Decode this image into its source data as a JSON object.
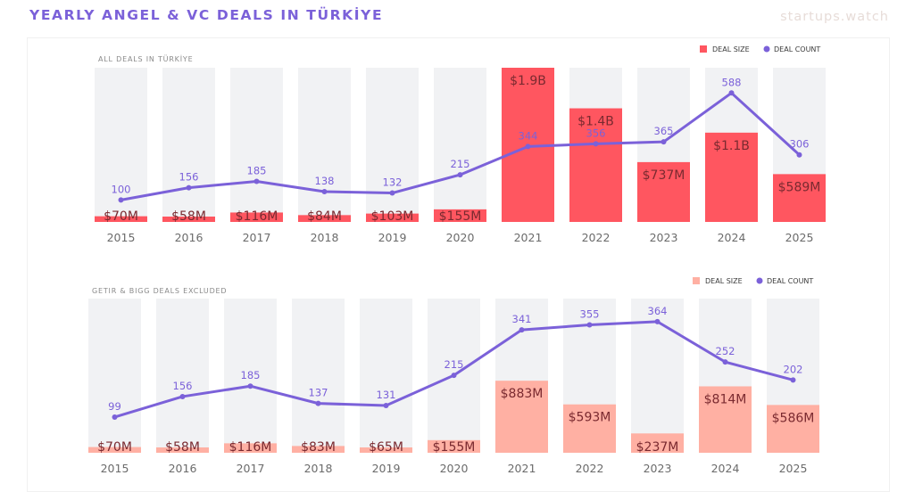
{
  "header": {
    "title": "YEARLY ANGEL & VC DEALS IN TÜRKİYE",
    "brand": "startups.watch"
  },
  "colors": {
    "title": "#7b61d9",
    "line": "#7b61d9",
    "bar_all": "#ff5660",
    "bar_excluded": "#ffb0a3",
    "bar_background": "#f1f2f4",
    "value_label": "#7a2a30"
  },
  "chart_data": [
    {
      "type": "bar",
      "title": "ALL DEALS IN TÜRKİYE",
      "legend": {
        "placement": "top-right",
        "entries": [
          "DEAL SIZE",
          "DEAL COUNT"
        ]
      },
      "categories": [
        "2015",
        "2016",
        "2017",
        "2018",
        "2019",
        "2020",
        "2021",
        "2022",
        "2023",
        "2024",
        "2025"
      ],
      "series": [
        {
          "name": "DEAL SIZE",
          "type": "bar",
          "unit": "USD millions",
          "values": [
            70,
            58,
            116,
            84,
            103,
            155,
            1900,
            1400,
            737,
            1100,
            589
          ],
          "labels": [
            "$70M",
            "$58M",
            "$116M",
            "$84M",
            "$103M",
            "$155M",
            "$1.9B",
            "$1.4B",
            "$737M",
            "$1.1B",
            "$589M"
          ]
        },
        {
          "name": "DEAL COUNT",
          "type": "line",
          "values": [
            100,
            156,
            185,
            138,
            132,
            215,
            344,
            356,
            365,
            588,
            306
          ]
        }
      ],
      "bar_ylim": [
        0,
        1900
      ],
      "line_ylim": [
        0,
        703
      ],
      "grid": false
    },
    {
      "type": "bar",
      "title": "GETIR & BIGG DEALS EXCLUDED",
      "legend": {
        "placement": "top-right",
        "entries": [
          "DEAL SIZE",
          "DEAL COUNT"
        ]
      },
      "categories": [
        "2015",
        "2016",
        "2017",
        "2018",
        "2019",
        "2020",
        "2021",
        "2022",
        "2023",
        "2024",
        "2025"
      ],
      "series": [
        {
          "name": "DEAL SIZE",
          "type": "bar",
          "unit": "USD millions",
          "values": [
            70,
            58,
            116,
            83,
            65,
            155,
            883,
            593,
            237,
            814,
            586
          ],
          "labels": [
            "$70M",
            "$58M",
            "$116M",
            "$83M",
            "$65M",
            "$155M",
            "$883M",
            "$593M",
            "$237M",
            "$814M",
            "$586M"
          ]
        },
        {
          "name": "DEAL COUNT",
          "type": "line",
          "values": [
            99,
            156,
            185,
            137,
            131,
            215,
            341,
            355,
            364,
            252,
            202
          ]
        }
      ],
      "bar_ylim": [
        0,
        1890
      ],
      "line_ylim": [
        0,
        428
      ],
      "grid": false
    }
  ]
}
